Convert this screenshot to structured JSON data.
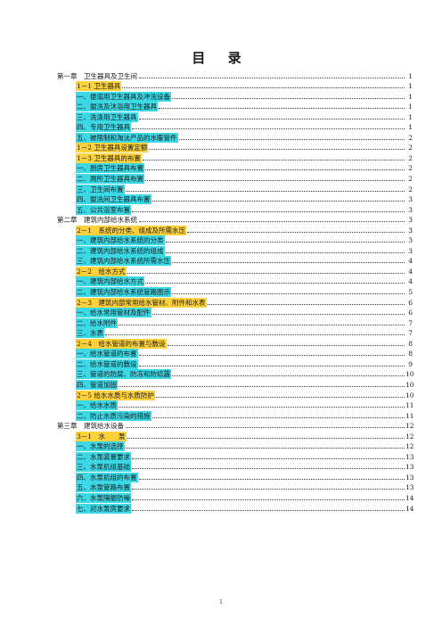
{
  "title": "目  录",
  "entries": [
    {
      "text": "第一章　卫生器具及卫生间",
      "page": "1",
      "level": 0,
      "hl": ""
    },
    {
      "text": "1－1 卫生器具",
      "page": "1",
      "level": 1,
      "hl": "y"
    },
    {
      "text": "一、便溺用卫生器具及冲洗设备",
      "page": "1",
      "level": 2,
      "hl": "c"
    },
    {
      "text": "二、盥洗及沐浴用卫生器具",
      "page": "1",
      "level": 2,
      "hl": "c"
    },
    {
      "text": "三、洗涤用卫生器具",
      "page": "1",
      "level": 2,
      "hl": "c"
    },
    {
      "text": "四、专用卫生器具",
      "page": "1",
      "level": 2,
      "hl": "c"
    },
    {
      "text": "五、被限制和淘汰产品的水暖管件",
      "page": "2",
      "level": 2,
      "hl": "c"
    },
    {
      "text": "1－2 卫生器具设置定额",
      "page": "2",
      "level": 1,
      "hl": "y"
    },
    {
      "text": "1－3 卫生器具的布置",
      "page": "2",
      "level": 1,
      "hl": "y"
    },
    {
      "text": "一、厨房卫生器具布置",
      "page": "2",
      "level": 2,
      "hl": "c"
    },
    {
      "text": "二、厕所卫生器具布置",
      "page": "2",
      "level": 2,
      "hl": "c"
    },
    {
      "text": "三、卫生间布置",
      "page": "2",
      "level": 2,
      "hl": "c"
    },
    {
      "text": "四、盥洗间卫生器具布置",
      "page": "3",
      "level": 2,
      "hl": "c"
    },
    {
      "text": "五、公共浴室布置",
      "page": "3",
      "level": 2,
      "hl": "c"
    },
    {
      "text": "第二章　建筑内部给水系统",
      "page": "3",
      "level": 0,
      "hl": ""
    },
    {
      "text": "2－1　系统的分类、组成及所需水压",
      "page": "3",
      "level": 1,
      "hl": "y"
    },
    {
      "text": "一、建筑内部给水系统的分类",
      "page": "3",
      "level": 2,
      "hl": "c"
    },
    {
      "text": "二、建筑内部给水系统的组成",
      "page": "3",
      "level": 2,
      "hl": "c"
    },
    {
      "text": "三、建筑内部给水系统所需水压",
      "page": "4",
      "level": 2,
      "hl": "c"
    },
    {
      "text": "2－2　给水方式",
      "page": "4",
      "level": 1,
      "hl": "y"
    },
    {
      "text": "一、建筑内部给水方式",
      "page": "4",
      "level": 2,
      "hl": "c"
    },
    {
      "text": "二、建筑内部给水系统管路图示",
      "page": "5",
      "level": 2,
      "hl": "c"
    },
    {
      "text": "2－3　建筑内部常用给水管材、附件和水表",
      "page": "6",
      "level": 1,
      "hl": "y"
    },
    {
      "text": "一、给水常用管材及配件",
      "page": "6",
      "level": 2,
      "hl": "c"
    },
    {
      "text": "二、给水附件",
      "page": "7",
      "level": 2,
      "hl": "c"
    },
    {
      "text": "三、水表",
      "page": "7",
      "level": 2,
      "hl": "c"
    },
    {
      "text": "2－4　给水管道的布置与敷设",
      "page": "8",
      "level": 1,
      "hl": "y"
    },
    {
      "text": "一、给水管道的布置",
      "page": "8",
      "level": 2,
      "hl": "c"
    },
    {
      "text": "二、给水管道的敷设",
      "page": "9",
      "level": 2,
      "hl": "c"
    },
    {
      "text": "三、管道的防腐、防冻和防结露",
      "page": "10",
      "level": 2,
      "hl": "c"
    },
    {
      "text": "四、管道加固",
      "page": "10",
      "level": 2,
      "hl": "c"
    },
    {
      "text": "2－5 给水水质与水质防护",
      "page": "10",
      "level": 1,
      "hl": "y"
    },
    {
      "text": "一、给水水质",
      "page": "11",
      "level": 2,
      "hl": "c"
    },
    {
      "text": "二、防止水质污染的措施",
      "page": "11",
      "level": 2,
      "hl": "c"
    },
    {
      "text": "第三章　建筑给水设备",
      "page": "12",
      "level": 0,
      "hl": ""
    },
    {
      "text": "3－1　水　　泵",
      "page": "12",
      "level": 1,
      "hl": "y"
    },
    {
      "text": "一、水泵的选择",
      "page": "12",
      "level": 2,
      "hl": "c"
    },
    {
      "text": "二、水泵装置要求",
      "page": "13",
      "level": 2,
      "hl": "c"
    },
    {
      "text": "三、水泵机组基础",
      "page": "13",
      "level": 2,
      "hl": "c"
    },
    {
      "text": "四、水泵机组的布置",
      "page": "13",
      "level": 2,
      "hl": "c"
    },
    {
      "text": "五、水泵管路布置",
      "page": "13",
      "level": 2,
      "hl": "c"
    },
    {
      "text": "六、水泵隔振防噪",
      "page": "14",
      "level": 2,
      "hl": "c"
    },
    {
      "text": "七、对水泵房要求",
      "page": "14",
      "level": 2,
      "hl": "c"
    }
  ],
  "footer": "1"
}
